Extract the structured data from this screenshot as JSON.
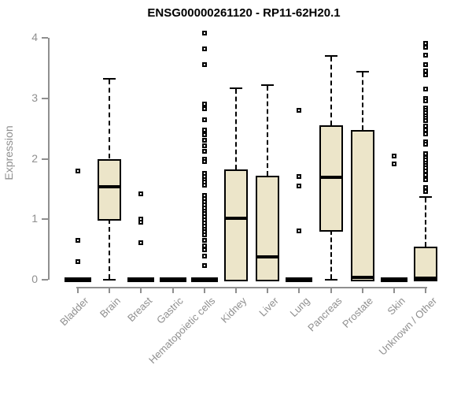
{
  "title": "ENSG00000261120 - RP11-62H20.1",
  "y_axis": {
    "label": "Expression",
    "ticks": [
      "0",
      "1",
      "2",
      "3",
      "4"
    ]
  },
  "colors": {
    "box_fill": "#ECE5C9",
    "line": "#000000",
    "axis": "#8F8F8F",
    "title": "#000000"
  },
  "chart_data": {
    "type": "boxplot",
    "title": "ENSG00000261120 - RP11-62H20.1",
    "xlabel": "",
    "ylabel": "Expression",
    "ylim": [
      0,
      4
    ],
    "yticks": [
      0,
      1,
      2,
      3,
      4
    ],
    "grid": false,
    "categories": [
      "Bladder",
      "Brain",
      "Breast",
      "Gastric",
      "Hematopoietic cells",
      "Kidney",
      "Liver",
      "Lung",
      "Pancreas",
      "Prostate",
      "Skin",
      "Unknown / Other"
    ],
    "boxes": [
      {
        "category": "Bladder",
        "q1": 0,
        "median": 0,
        "q3": 0,
        "whisker_low": 0,
        "whisker_high": 0,
        "outliers": [
          1.8,
          0.65,
          0.3
        ]
      },
      {
        "category": "Brain",
        "q1": 1.0,
        "median": 1.54,
        "q3": 2.0,
        "whisker_low": 0,
        "whisker_high": 3.32,
        "outliers": []
      },
      {
        "category": "Breast",
        "q1": 0,
        "median": 0,
        "q3": 0,
        "whisker_low": 0,
        "whisker_high": 0,
        "outliers": [
          1.42,
          1.0,
          0.95,
          0.61
        ]
      },
      {
        "category": "Gastric",
        "q1": 0,
        "median": 0,
        "q3": 0,
        "whisker_low": 0,
        "whisker_high": 0,
        "outliers": []
      },
      {
        "category": "Hematopoietic cells",
        "q1": 0,
        "median": 0,
        "q3": 0,
        "whisker_low": 0,
        "whisker_high": 0,
        "outliers": [
          4.08,
          3.82,
          3.56,
          2.9,
          2.83,
          2.65,
          2.48,
          2.4,
          2.31,
          2.21,
          2.13,
          2.0,
          1.95,
          1.76,
          1.71,
          1.66,
          1.61,
          1.56,
          1.39,
          1.34,
          1.29,
          1.24,
          1.19,
          1.14,
          1.09,
          1.04,
          0.99,
          0.94,
          0.89,
          0.84,
          0.79,
          0.74,
          0.65,
          0.56,
          0.49,
          0.39,
          0.23
        ]
      },
      {
        "category": "Kidney",
        "q1": 0,
        "median": 1.01,
        "q3": 1.83,
        "whisker_low": 0,
        "whisker_high": 3.16,
        "outliers": []
      },
      {
        "category": "Liver",
        "q1": 0,
        "median": 0.38,
        "q3": 1.72,
        "whisker_low": 0,
        "whisker_high": 3.22,
        "outliers": []
      },
      {
        "category": "Lung",
        "q1": 0,
        "median": 0,
        "q3": 0,
        "whisker_low": 0,
        "whisker_high": 0,
        "outliers": [
          2.8,
          1.71,
          1.55,
          0.81
        ]
      },
      {
        "category": "Pancreas",
        "q1": 0.82,
        "median": 1.69,
        "q3": 2.56,
        "whisker_low": 0,
        "whisker_high": 3.7,
        "outliers": []
      },
      {
        "category": "Prostate",
        "q1": 0,
        "median": 0.04,
        "q3": 2.47,
        "whisker_low": 0,
        "whisker_high": 3.44,
        "outliers": []
      },
      {
        "category": "Skin",
        "q1": 0,
        "median": 0,
        "q3": 0,
        "whisker_low": 0,
        "whisker_high": 0,
        "outliers": [
          2.05,
          1.92
        ]
      },
      {
        "category": "Unknown / Other",
        "q1": 0,
        "median": 0.03,
        "q3": 0.55,
        "whisker_low": 0,
        "whisker_high": 1.37,
        "outliers": [
          3.91,
          3.84,
          3.71,
          3.56,
          3.45,
          3.39,
          3.15,
          3.0,
          2.96,
          2.84,
          2.8,
          2.76,
          2.71,
          2.67,
          2.63,
          2.54,
          2.48,
          2.41,
          2.28,
          2.24,
          2.08,
          2.02,
          1.98,
          1.93,
          1.89,
          1.85,
          1.8,
          1.73,
          1.65,
          1.52,
          1.46
        ]
      }
    ]
  }
}
